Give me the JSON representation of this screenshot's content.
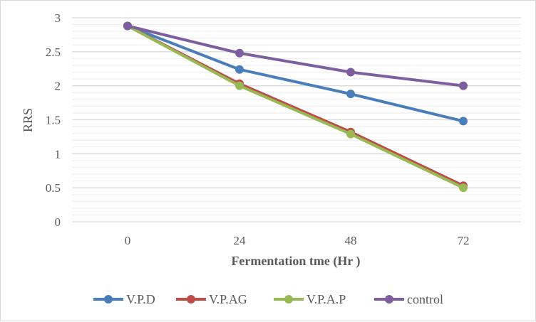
{
  "chart_data": {
    "type": "line",
    "title": "",
    "xlabel": "Fermentation tme (Hr )",
    "ylabel": "RRS",
    "categories": [
      "0",
      "24",
      "48",
      "72"
    ],
    "ylim": [
      0,
      3
    ],
    "yticks": [
      "0",
      "0.5",
      "1",
      "1.5",
      "2",
      "2.5",
      "3"
    ],
    "grid": true,
    "minor_grid": true,
    "legend_position": "bottom",
    "series": [
      {
        "name": "V.P.D",
        "color": "#4a7ebb",
        "values": [
          2.88,
          2.24,
          1.88,
          1.48
        ]
      },
      {
        "name": "V.P.AG",
        "color": "#be4b48",
        "values": [
          2.88,
          2.03,
          1.32,
          0.53
        ]
      },
      {
        "name": "V.P.A.P",
        "color": "#98b954",
        "values": [
          2.88,
          2.0,
          1.29,
          0.5
        ]
      },
      {
        "name": "control",
        "color": "#7d5fa0",
        "values": [
          2.88,
          2.48,
          2.2,
          2.0
        ]
      }
    ]
  }
}
